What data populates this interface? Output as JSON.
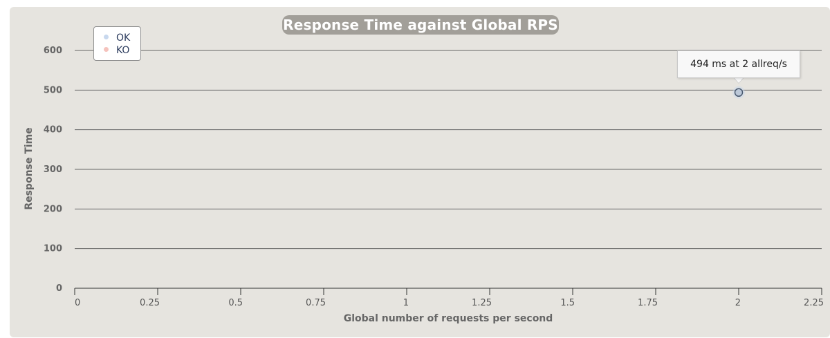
{
  "chart_data": {
    "type": "scatter",
    "title": "Response Time against Global RPS",
    "xlabel": "Global number of requests per second",
    "ylabel": "Response Time",
    "xlim": [
      0,
      2.25
    ],
    "ylim": [
      0,
      600
    ],
    "x_ticks": [
      "0",
      "0.25",
      "0.5",
      "0.75",
      "1",
      "1.25",
      "1.5",
      "1.75",
      "2",
      "2.25"
    ],
    "y_ticks": [
      "0",
      "100",
      "200",
      "300",
      "400",
      "500",
      "600"
    ],
    "grid": true,
    "legend_position": "top-left",
    "series": [
      {
        "name": "OK",
        "color": "#c8d8ee",
        "points": [
          {
            "x": 2,
            "y": 494
          }
        ]
      },
      {
        "name": "KO",
        "color": "#f5c3bd",
        "points": []
      }
    ],
    "tooltip": "494 ms at 2 allreq/s"
  },
  "colors": {
    "panel_bg": "#e6e4df",
    "title_bg": "#a29f99",
    "grid": "#666666"
  }
}
